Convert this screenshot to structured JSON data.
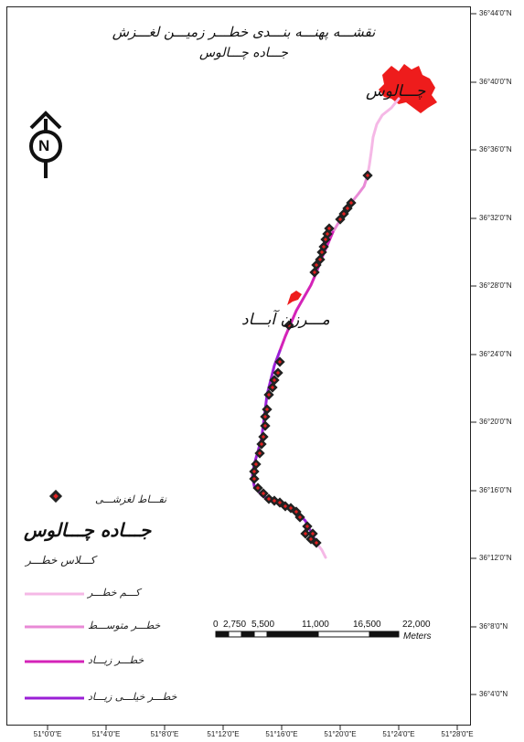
{
  "title": {
    "line1": "نقشـــه پهنـــه بنـــدی خطـــر زمیـــن لغـــزش",
    "line2": "جـــاده چـــالوس"
  },
  "places": {
    "chalus": "چـــالوس",
    "marzanabad": "مـــرزن آبـــاد"
  },
  "north_arrow": {
    "letter": "N"
  },
  "grid": {
    "lat_labels": [
      "36°44'0\"N",
      "36°40'0\"N",
      "36°36'0\"N",
      "36°32'0\"N",
      "36°28'0\"N",
      "36°24'0\"N",
      "36°20'0\"N",
      "36°16'0\"N",
      "36°12'0\"N",
      "36°8'0\"N",
      "36°4'0\"N"
    ],
    "lon_labels": [
      "51°0'0\"E",
      "51°4'0\"E",
      "51°8'0\"E",
      "51°12'0\"E",
      "51°16'0\"E",
      "51°20'0\"E",
      "51°24'0\"E",
      "51°28'0\"E"
    ]
  },
  "scale_bar": {
    "labels": [
      "0",
      "2,750",
      "5,500",
      "11,000",
      "16,500",
      "22,000"
    ],
    "unit": "Meters"
  },
  "legend": {
    "points_label": "نقـــاط لغزشـــی",
    "road_label": "جـــاده چـــالوس",
    "class_title": "کـــلاس خطـــر",
    "classes": [
      {
        "label": "کـــم خطـــر",
        "color": "#f5b8e6"
      },
      {
        "label": "خطـــر متوســـط",
        "color": "#e88ad6"
      },
      {
        "label": "خطـــر زیـــاد",
        "color": "#d423b8"
      },
      {
        "label": "خطـــر خیلـــی زیـــاد",
        "color": "#9a1fd6"
      }
    ]
  },
  "colors": {
    "lake": "#ee1c1c",
    "landslide_point": "#222222",
    "landslide_point_center": "#e02020"
  }
}
